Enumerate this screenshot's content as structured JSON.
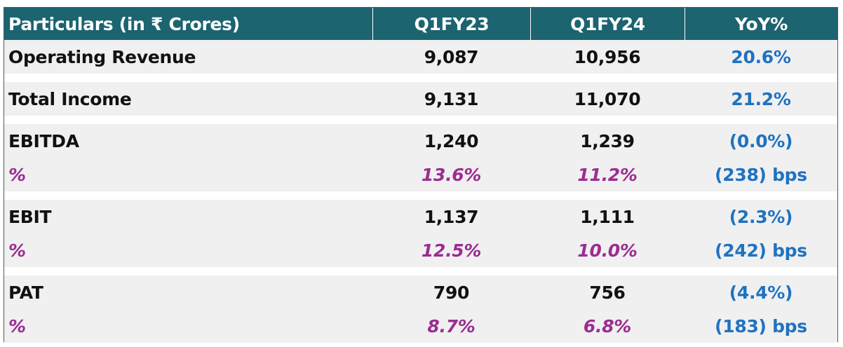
{
  "table": {
    "header": [
      "Particulars (in ₹ Crores)",
      "Q1FY23",
      "Q1FY24",
      "YoY%"
    ],
    "groups": [
      [
        [
          "Operating Revenue",
          "9,087",
          "10,956",
          "20.6%"
        ]
      ],
      [
        [
          "Total Income",
          "9,131",
          "11,070",
          "21.2%"
        ]
      ],
      [
        [
          "EBITDA",
          "1,240",
          "1,239",
          "(0.0%)"
        ],
        [
          "%",
          "13.6%",
          "11.2%",
          "(238) bps"
        ]
      ],
      [
        [
          "EBIT",
          "1,137",
          "1,111",
          "(2.3%)"
        ],
        [
          "%",
          "12.5%",
          "10.0%",
          "(242) bps"
        ]
      ],
      [
        [
          "PAT",
          "790",
          "756",
          "(4.4%)"
        ],
        [
          "%",
          "8.7%",
          "6.8%",
          "(183) bps"
        ]
      ]
    ]
  }
}
